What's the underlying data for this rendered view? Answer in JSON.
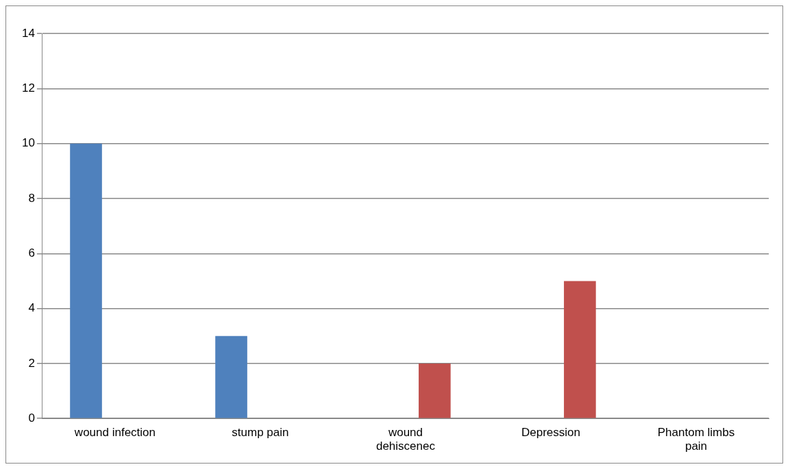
{
  "chart_data": {
    "type": "bar",
    "categories": [
      "wound infection",
      "stump pain",
      "wound dehiscenec",
      "Depression",
      "Phantom limbs pain"
    ],
    "series": [
      {
        "color": "#4f81bd",
        "values": [
          10,
          3,
          null,
          null,
          null
        ]
      },
      {
        "color": "#c0504d",
        "values": [
          null,
          null,
          2,
          5,
          0
        ]
      }
    ],
    "ylim": [
      0,
      14
    ],
    "yticks": [
      0,
      2,
      4,
      6,
      8,
      10,
      12,
      14
    ],
    "grid": "y",
    "legend": false
  }
}
